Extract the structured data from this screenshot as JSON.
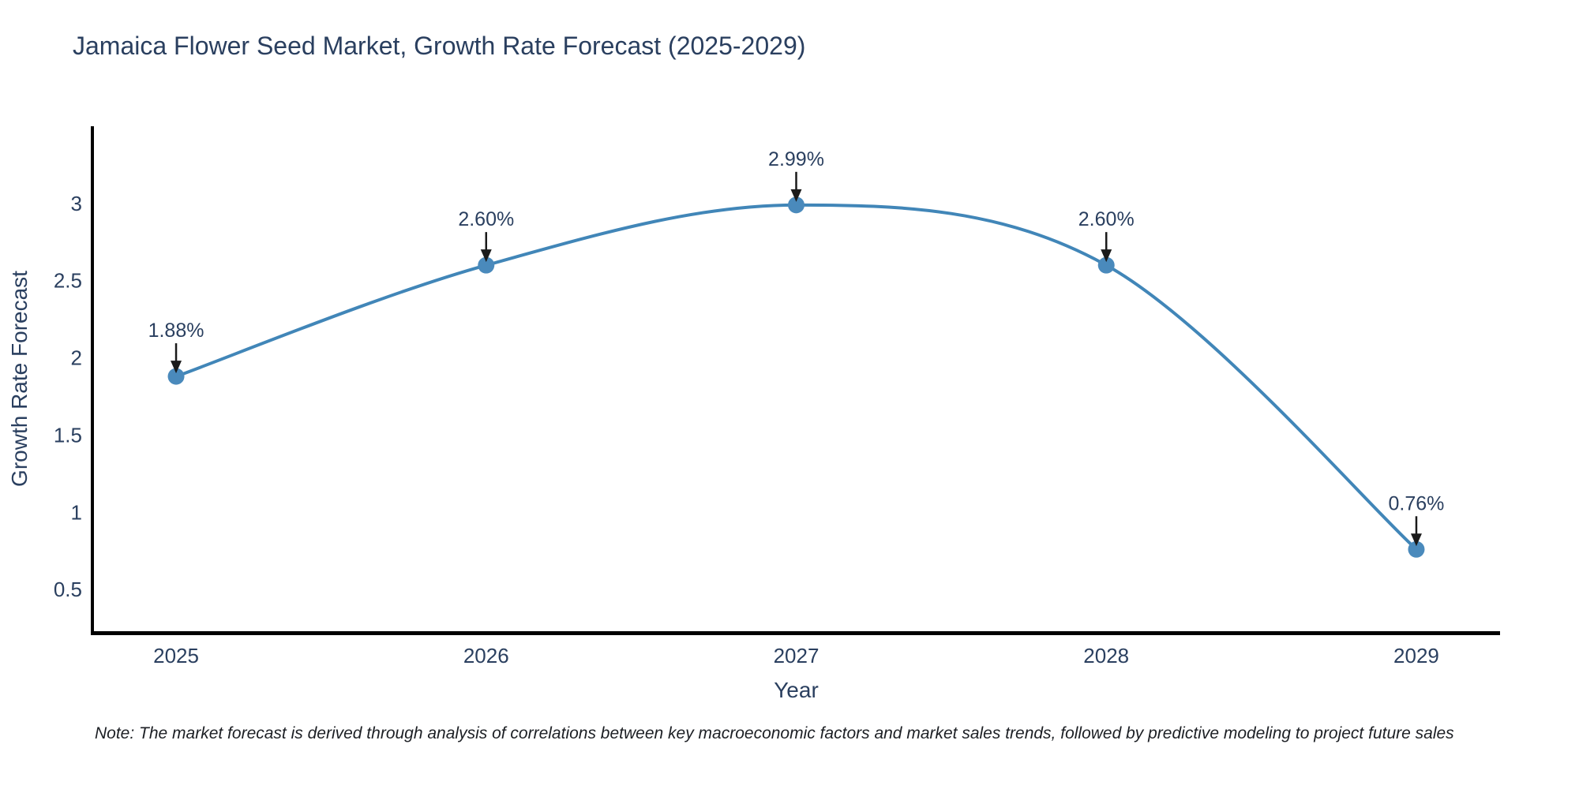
{
  "title": "Jamaica Flower Seed Market, Growth Rate Forecast (2025-2029)",
  "note": "Note: The market forecast is derived through analysis of correlations between key macroeconomic factors and market sales trends, followed by predictive modeling to project future sales",
  "chart_data": {
    "type": "line",
    "title": "Jamaica Flower Seed Market, Growth Rate Forecast (2025-2029)",
    "xlabel": "Year",
    "ylabel": "Growth Rate Forecast",
    "categories": [
      "2025",
      "2026",
      "2027",
      "2028",
      "2029"
    ],
    "x": [
      2025,
      2026,
      2027,
      2028,
      2029
    ],
    "values": [
      1.88,
      2.6,
      2.99,
      2.6,
      0.76
    ],
    "point_labels": [
      "1.88%",
      "2.60%",
      "2.99%",
      "2.60%",
      "0.76%"
    ],
    "yticks": [
      0.5,
      1,
      1.5,
      2,
      2.5,
      3
    ],
    "ytick_labels": [
      "0.5",
      "1",
      "1.5",
      "2",
      "2.5",
      "3"
    ],
    "ylim": [
      0.23,
      3.5
    ],
    "xlim": [
      2024.73,
      2029.27
    ],
    "grid": false,
    "legend_position": "none",
    "smooth": true,
    "colors": {
      "line": "#4186b8",
      "marker": "#4a8abc",
      "axis": "#000000",
      "text": "#2a3f5f",
      "annotation_arrow": "#1a1a1a",
      "background": "#ffffff"
    }
  }
}
